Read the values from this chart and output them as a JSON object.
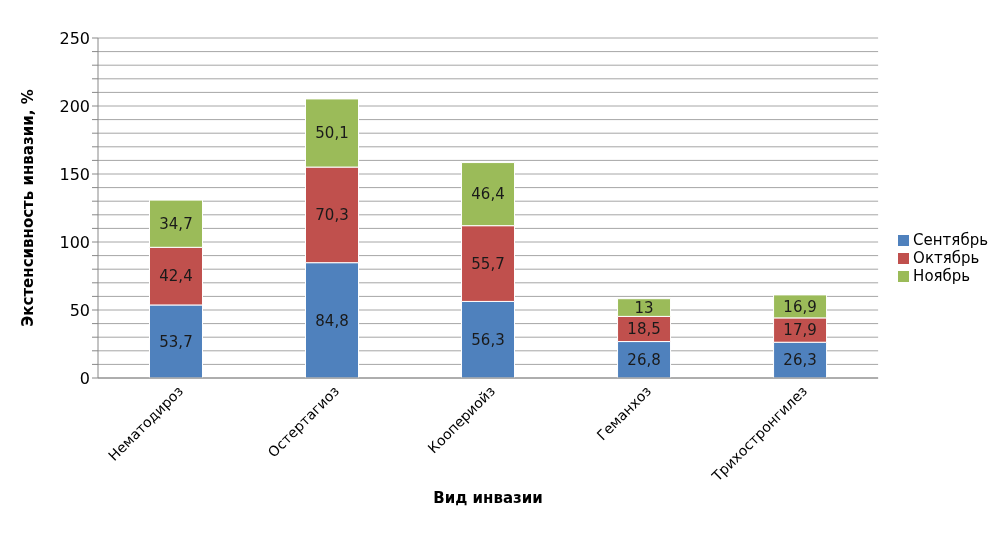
{
  "chart_data": {
    "type": "bar",
    "stacked": true,
    "xlabel": "Вид инвазии",
    "ylabel": "Экстенсивность инвазии, %",
    "categories": [
      "Нематодироз",
      "Остертагиоз",
      "Коопериойз",
      "Геманхоз",
      "Трихостронгилез"
    ],
    "series": [
      {
        "name": "Сентябрь",
        "color": "#4f81bd",
        "values": [
          53.7,
          84.8,
          56.3,
          26.8,
          26.3
        ],
        "value_labels": [
          "53,7",
          "84,8",
          "56,3",
          "26,8",
          "26,3"
        ]
      },
      {
        "name": "Октябрь",
        "color": "#c0504d",
        "values": [
          42.4,
          70.3,
          55.7,
          18.5,
          17.9
        ],
        "value_labels": [
          "42,4",
          "70,3",
          "55,7",
          "18,5",
          "17,9"
        ]
      },
      {
        "name": "Ноябрь",
        "color": "#9bbb59",
        "values": [
          34.7,
          50.1,
          46.4,
          13,
          16.9
        ],
        "value_labels": [
          "34,7",
          "50,1",
          "46,4",
          "13",
          "16,9"
        ]
      }
    ],
    "ylim": [
      0,
      250
    ],
    "yticks": [
      0,
      {
        "value": 10,
        "label": null
      },
      {
        "value": 20,
        "label": null
      },
      {
        "value": 30,
        "label": null
      },
      {
        "value": 40,
        "label": null
      },
      50,
      {
        "value": 60,
        "label": null
      },
      {
        "value": 70,
        "label": null
      },
      {
        "value": 80,
        "label": null
      },
      {
        "value": 90,
        "label": null
      },
      100,
      {
        "value": 110,
        "label": null
      },
      {
        "value": 120,
        "label": null
      },
      {
        "value": 130,
        "label": null
      },
      {
        "value": 140,
        "label": null
      },
      150,
      {
        "value": 160,
        "label": null
      },
      {
        "value": 170,
        "label": null
      },
      {
        "value": 180,
        "label": null
      },
      {
        "value": 190,
        "label": null
      },
      200,
      {
        "value": 210,
        "label": null
      },
      {
        "value": 220,
        "label": null
      },
      {
        "value": 230,
        "label": null
      },
      {
        "value": 240,
        "label": null
      },
      250
    ],
    "grid": "y",
    "legend": "right"
  }
}
